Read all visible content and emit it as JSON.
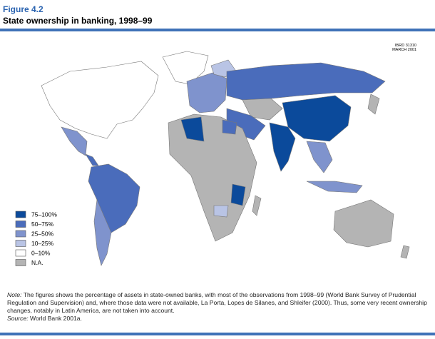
{
  "figure": {
    "label": "Figure 4.2",
    "title": "State ownership in banking, 1998–99"
  },
  "map": {
    "stamp": [
      "IBRD 31310",
      "MARCH 2001"
    ],
    "legend": [
      {
        "label": "75–100%",
        "color": "#0b4a9b"
      },
      {
        "label": "50–75%",
        "color": "#4a6cbb"
      },
      {
        "label": "25–50%",
        "color": "#7f93cd"
      },
      {
        "label": "10–25%",
        "color": "#b9c4e5"
      },
      {
        "label": "0–10%",
        "color": "#ffffff"
      },
      {
        "label": "N.A.",
        "color": "#b4b4b4"
      }
    ]
  },
  "note": {
    "label": "Note:",
    "text": "The figures shows the percentage of assets in state-owned banks, with most of the observations from 1998–99 (World Bank Survey of Prudential Regulation and Supervision) and, where those data were not available, La Porta, Lopes de Silanes, and Shleifer (2000). Thus, some very recent ownership changes, notably in Latin America, are not taken into account.",
    "source_label": "Source:",
    "source": "World Bank 2001a."
  }
}
